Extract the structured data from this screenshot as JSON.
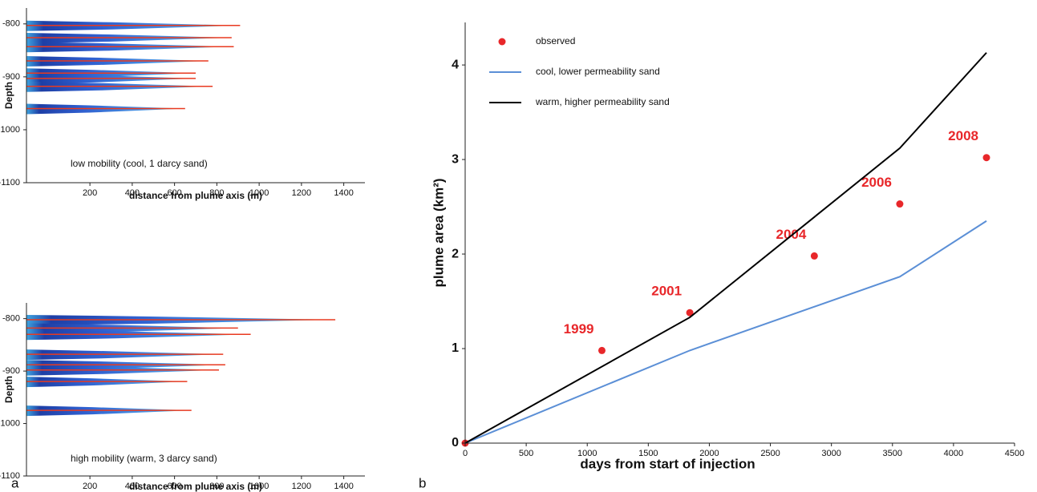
{
  "panel_labels": [
    "a",
    "b"
  ],
  "chart_data": [
    {
      "type": "plume",
      "xlabel": "distance from plume axis (m)",
      "ylabel": "Depth",
      "annotation": "low mobility (cool, 1 darcy sand)",
      "xlim": [
        -100,
        1500
      ],
      "xticks": [
        200,
        400,
        600,
        800,
        1000,
        1200,
        1400
      ],
      "ylim": [
        -1100,
        -770
      ],
      "yticks": [
        -800,
        -900,
        -1000,
        -1100
      ],
      "y": [
        -803,
        -826,
        -843,
        -870,
        -893,
        -903,
        -918,
        -960
      ],
      "values": [
        910,
        870,
        880,
        760,
        700,
        700,
        780,
        650
      ]
    },
    {
      "type": "plume",
      "xlabel": "distance from plume axis (m)",
      "ylabel": "Depth",
      "annotation": "high mobility (warm, 3 darcy sand)",
      "xlim": [
        -100,
        1500
      ],
      "xticks": [
        200,
        400,
        600,
        800,
        1000,
        1200,
        1400
      ],
      "ylim": [
        -1100,
        -770
      ],
      "yticks": [
        -800,
        -900,
        -1000,
        -1100
      ],
      "y": [
        -802,
        -818,
        -830,
        -868,
        -888,
        -898,
        -920,
        -975
      ],
      "values": [
        1360,
        900,
        960,
        830,
        840,
        810,
        660,
        680
      ]
    },
    {
      "type": "line",
      "xlabel": "days from start of injection",
      "ylabel": "plume area (km²)",
      "xlim": [
        0,
        4500
      ],
      "xticks": [
        0,
        500,
        1000,
        1500,
        2000,
        2500,
        3000,
        3500,
        4000,
        4500
      ],
      "ylim": [
        0,
        4.45
      ],
      "yticks": [
        0,
        1,
        2,
        3,
        4
      ],
      "legend": "upper left",
      "series": [
        {
          "name": "observed",
          "type": "scatter",
          "color": "#e8272a",
          "x": [
            0,
            1120,
            1840,
            2860,
            3560,
            4270
          ],
          "values": [
            0,
            0.98,
            1.38,
            1.98,
            2.53,
            3.02
          ],
          "point_labels": [
            null,
            "1999",
            "2001",
            "2004",
            "2006",
            "2008"
          ]
        },
        {
          "name": "cool, lower permeability sand",
          "type": "line",
          "color": "#5b8fd6",
          "x": [
            0,
            1840,
            3560,
            4270
          ],
          "values": [
            0,
            0.98,
            1.76,
            2.35
          ]
        },
        {
          "name": "warm, higher permeability sand",
          "type": "line",
          "color": "#000000",
          "x": [
            0,
            1840,
            3560,
            4270
          ],
          "values": [
            0,
            1.33,
            3.12,
            4.13
          ]
        }
      ]
    }
  ]
}
